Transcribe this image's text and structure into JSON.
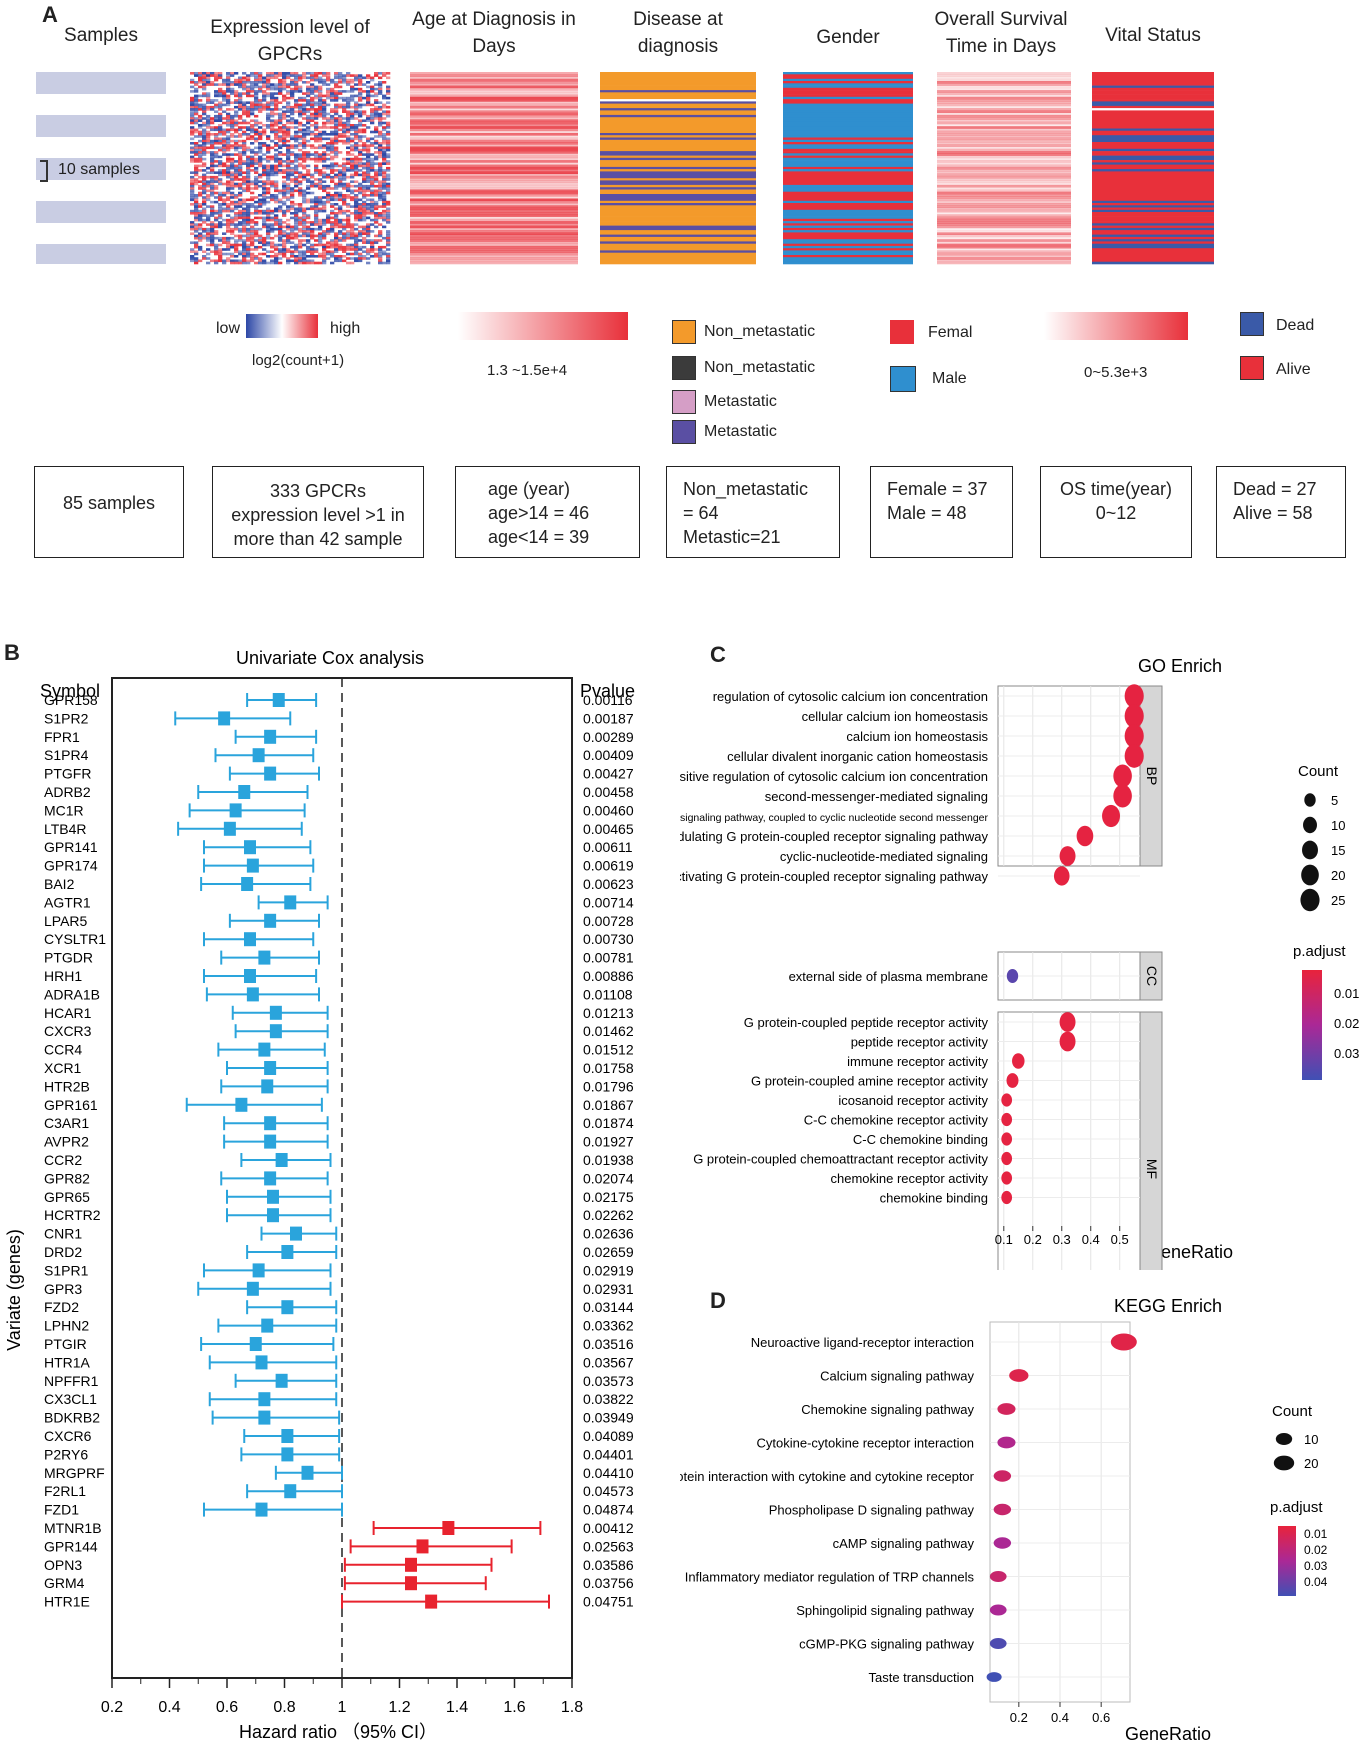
{
  "colors": {
    "blue": "#3a5aa8",
    "red": "#e8303a",
    "orange": "#f39a2b",
    "dark": "#3b3b3b",
    "pink": "#d59ec6",
    "purple": "#5a4fa3",
    "lightgray": "#c9cde3",
    "cyan": "#2aa4dc",
    "fpred": "#e8232e",
    "genderblue": "#2f8fcf"
  },
  "panelA": {
    "label": "A",
    "headers": {
      "samples": "Samples",
      "expr": "Expression level of GPCRs",
      "age": "Age at Diagnosis in Days",
      "disease": "Disease at diagnosis",
      "gender": "Gender",
      "os": "Overall Survival Time in Days",
      "vital": "Vital Status"
    },
    "samples_note": "10 samples",
    "expr_legend": {
      "low": "low",
      "high": "high",
      "scale": "log2(count+1)"
    },
    "age_range": "1.3 ~1.5e+4",
    "disease_legend": [
      "Non_metastatic",
      "Non_metastatic",
      "Metastatic",
      "Metastatic"
    ],
    "gender_legend": [
      "Femal",
      "Male"
    ],
    "os_range": "0~5.3e+3",
    "vital_legend": [
      "Dead",
      "Alive"
    ],
    "boxes": {
      "samples": [
        "85 samples"
      ],
      "expr": [
        "333 GPCRs",
        "expression level >1 in",
        "more than 42 sample"
      ],
      "age": [
        "age (year)",
        "age>14 = 46",
        "age<14 = 39"
      ],
      "disease": [
        "Non_metastatic",
        "= 64",
        "Metastic=21"
      ],
      "gender": [
        "Female = 37",
        "Male = 48"
      ],
      "os": [
        "OS time(year)",
        "0~12"
      ],
      "vital": [
        "Dead = 27",
        "Alive = 58"
      ]
    }
  },
  "panelB": {
    "label": "B",
    "chart_data": {
      "type": "forest",
      "title": "Univariate Cox analysis",
      "symbol_header": "Symbol",
      "pvalue_header": "Pvalue",
      "ylabel": "Variate (genes)",
      "xlabel": "Hazard ratio （95% CI）",
      "xlim": [
        0.2,
        1.8
      ],
      "xticks": [
        0.2,
        0.4,
        0.6,
        0.8,
        1,
        1.2,
        1.4,
        1.6,
        1.8
      ],
      "rows": [
        {
          "gene": "GPR158",
          "hr": 0.78,
          "lo": 0.67,
          "hi": 0.91,
          "p": "0.00116"
        },
        {
          "gene": "S1PR2",
          "hr": 0.59,
          "lo": 0.42,
          "hi": 0.82,
          "p": "0.00187"
        },
        {
          "gene": "FPR1",
          "hr": 0.75,
          "lo": 0.63,
          "hi": 0.91,
          "p": "0.00289"
        },
        {
          "gene": "S1PR4",
          "hr": 0.71,
          "lo": 0.56,
          "hi": 0.9,
          "p": "0.00409"
        },
        {
          "gene": "PTGFR",
          "hr": 0.75,
          "lo": 0.61,
          "hi": 0.92,
          "p": "0.00427"
        },
        {
          "gene": "ADRB2",
          "hr": 0.66,
          "lo": 0.5,
          "hi": 0.88,
          "p": "0.00458"
        },
        {
          "gene": "MC1R",
          "hr": 0.63,
          "lo": 0.47,
          "hi": 0.87,
          "p": "0.00460"
        },
        {
          "gene": "LTB4R",
          "hr": 0.61,
          "lo": 0.43,
          "hi": 0.86,
          "p": "0.00465"
        },
        {
          "gene": "GPR141",
          "hr": 0.68,
          "lo": 0.52,
          "hi": 0.89,
          "p": "0.00611"
        },
        {
          "gene": "GPR174",
          "hr": 0.69,
          "lo": 0.52,
          "hi": 0.9,
          "p": "0.00619"
        },
        {
          "gene": "BAI2",
          "hr": 0.67,
          "lo": 0.51,
          "hi": 0.89,
          "p": "0.00623"
        },
        {
          "gene": "AGTR1",
          "hr": 0.82,
          "lo": 0.71,
          "hi": 0.95,
          "p": "0.00714"
        },
        {
          "gene": "LPAR5",
          "hr": 0.75,
          "lo": 0.61,
          "hi": 0.92,
          "p": "0.00728"
        },
        {
          "gene": "CYSLTR1",
          "hr": 0.68,
          "lo": 0.52,
          "hi": 0.9,
          "p": "0.00730"
        },
        {
          "gene": "PTGDR",
          "hr": 0.73,
          "lo": 0.58,
          "hi": 0.92,
          "p": "0.00781"
        },
        {
          "gene": "HRH1",
          "hr": 0.68,
          "lo": 0.52,
          "hi": 0.91,
          "p": "0.00886"
        },
        {
          "gene": "ADRA1B",
          "hr": 0.69,
          "lo": 0.53,
          "hi": 0.92,
          "p": "0.01108"
        },
        {
          "gene": "HCAR1",
          "hr": 0.77,
          "lo": 0.62,
          "hi": 0.95,
          "p": "0.01213"
        },
        {
          "gene": "CXCR3",
          "hr": 0.77,
          "lo": 0.63,
          "hi": 0.95,
          "p": "0.01462"
        },
        {
          "gene": "CCR4",
          "hr": 0.73,
          "lo": 0.57,
          "hi": 0.94,
          "p": "0.01512"
        },
        {
          "gene": "XCR1",
          "hr": 0.75,
          "lo": 0.6,
          "hi": 0.95,
          "p": "0.01758"
        },
        {
          "gene": "HTR2B",
          "hr": 0.74,
          "lo": 0.58,
          "hi": 0.95,
          "p": "0.01796"
        },
        {
          "gene": "GPR161",
          "hr": 0.65,
          "lo": 0.46,
          "hi": 0.93,
          "p": "0.01867"
        },
        {
          "gene": "C3AR1",
          "hr": 0.75,
          "lo": 0.59,
          "hi": 0.95,
          "p": "0.01874"
        },
        {
          "gene": "AVPR2",
          "hr": 0.75,
          "lo": 0.59,
          "hi": 0.95,
          "p": "0.01927"
        },
        {
          "gene": "CCR2",
          "hr": 0.79,
          "lo": 0.65,
          "hi": 0.96,
          "p": "0.01938"
        },
        {
          "gene": "GPR82",
          "hr": 0.75,
          "lo": 0.58,
          "hi": 0.95,
          "p": "0.02074"
        },
        {
          "gene": "GPR65",
          "hr": 0.76,
          "lo": 0.6,
          "hi": 0.96,
          "p": "0.02175"
        },
        {
          "gene": "HCRTR2",
          "hr": 0.76,
          "lo": 0.6,
          "hi": 0.96,
          "p": "0.02262"
        },
        {
          "gene": "CNR1",
          "hr": 0.84,
          "lo": 0.72,
          "hi": 0.98,
          "p": "0.02636"
        },
        {
          "gene": "DRD2",
          "hr": 0.81,
          "lo": 0.67,
          "hi": 0.98,
          "p": "0.02659"
        },
        {
          "gene": "S1PR1",
          "hr": 0.71,
          "lo": 0.52,
          "hi": 0.96,
          "p": "0.02919"
        },
        {
          "gene": "GPR3",
          "hr": 0.69,
          "lo": 0.5,
          "hi": 0.96,
          "p": "0.02931"
        },
        {
          "gene": "FZD2",
          "hr": 0.81,
          "lo": 0.67,
          "hi": 0.98,
          "p": "0.03144"
        },
        {
          "gene": "LPHN2",
          "hr": 0.74,
          "lo": 0.57,
          "hi": 0.98,
          "p": "0.03362"
        },
        {
          "gene": "PTGIR",
          "hr": 0.7,
          "lo": 0.51,
          "hi": 0.97,
          "p": "0.03516"
        },
        {
          "gene": "HTR1A",
          "hr": 0.72,
          "lo": 0.54,
          "hi": 0.98,
          "p": "0.03567"
        },
        {
          "gene": "NPFFR1",
          "hr": 0.79,
          "lo": 0.63,
          "hi": 0.98,
          "p": "0.03573"
        },
        {
          "gene": "CX3CL1",
          "hr": 0.73,
          "lo": 0.54,
          "hi": 0.98,
          "p": "0.03822"
        },
        {
          "gene": "BDKRB2",
          "hr": 0.73,
          "lo": 0.55,
          "hi": 0.99,
          "p": "0.03949"
        },
        {
          "gene": "CXCR6",
          "hr": 0.81,
          "lo": 0.66,
          "hi": 0.99,
          "p": "0.04089"
        },
        {
          "gene": "P2RY6",
          "hr": 0.81,
          "lo": 0.65,
          "hi": 0.99,
          "p": "0.04401"
        },
        {
          "gene": "MRGPRF",
          "hr": 0.88,
          "lo": 0.77,
          "hi": 1.0,
          "p": "0.04410"
        },
        {
          "gene": "F2RL1",
          "hr": 0.82,
          "lo": 0.67,
          "hi": 1.0,
          "p": "0.04573"
        },
        {
          "gene": "FZD1",
          "hr": 0.72,
          "lo": 0.52,
          "hi": 1.0,
          "p": "0.04874"
        },
        {
          "gene": "MTNR1B",
          "hr": 1.37,
          "lo": 1.11,
          "hi": 1.69,
          "p": "0.00412"
        },
        {
          "gene": "GPR144",
          "hr": 1.28,
          "lo": 1.03,
          "hi": 1.59,
          "p": "0.02563"
        },
        {
          "gene": "OPN3",
          "hr": 1.24,
          "lo": 1.01,
          "hi": 1.52,
          "p": "0.03586"
        },
        {
          "gene": "GRM4",
          "hr": 1.24,
          "lo": 1.01,
          "hi": 1.5,
          "p": "0.03756"
        },
        {
          "gene": "HTR1E",
          "hr": 1.31,
          "lo": 1.0,
          "hi": 1.72,
          "p": "0.04751"
        }
      ]
    }
  },
  "panelC": {
    "label": "C",
    "chart_data": {
      "type": "scatter",
      "title": "GO Enrich",
      "xlabel": "GeneRatio",
      "xticks": [
        0.1,
        0.2,
        0.3,
        0.4,
        0.5
      ],
      "xlim": [
        0.08,
        0.57
      ],
      "facets": [
        {
          "name": "BP",
          "terms": [
            {
              "term": "regulation of cytosolic calcium ion concentration",
              "ratio": 0.55,
              "count": 25,
              "padj": 0.001
            },
            {
              "term": "cellular calcium ion homeostasis",
              "ratio": 0.55,
              "count": 25,
              "padj": 0.001
            },
            {
              "term": "calcium ion homeostasis",
              "ratio": 0.55,
              "count": 25,
              "padj": 0.001
            },
            {
              "term": "cellular divalent inorganic cation homeostasis",
              "ratio": 0.55,
              "count": 25,
              "padj": 0.001
            },
            {
              "term": "positive regulation of cytosolic calcium ion concentration",
              "ratio": 0.51,
              "count": 23,
              "padj": 0.001
            },
            {
              "term": "second-messenger-mediated signaling",
              "ratio": 0.51,
              "count": 23,
              "padj": 0.001
            },
            {
              "term": "G protein-coupled receptor signaling pathway, coupled to cyclic nucleotide second messenger",
              "ratio": 0.47,
              "count": 21,
              "padj": 0.001
            },
            {
              "term": "adenylate cyclase-modulating G protein-coupled receptor signaling pathway",
              "ratio": 0.38,
              "count": 17,
              "padj": 0.001
            },
            {
              "term": "cyclic-nucleotide-mediated signaling",
              "ratio": 0.32,
              "count": 15,
              "padj": 0.001
            },
            {
              "term": "phospholipase C-activating G protein-coupled receptor signaling pathway",
              "ratio": 0.3,
              "count": 14,
              "padj": 0.001
            }
          ]
        },
        {
          "name": "CC",
          "terms": [
            {
              "term": "external side of plasma membrane",
              "ratio": 0.13,
              "count": 5,
              "padj": 0.035
            }
          ]
        },
        {
          "name": "MF",
          "terms": [
            {
              "term": "G protein-coupled peptide receptor activity",
              "ratio": 0.32,
              "count": 15,
              "padj": 0.001
            },
            {
              "term": "peptide receptor activity",
              "ratio": 0.32,
              "count": 15,
              "padj": 0.001
            },
            {
              "term": "immune receptor activity",
              "ratio": 0.15,
              "count": 7,
              "padj": 0.001
            },
            {
              "term": "G protein-coupled amine receptor activity",
              "ratio": 0.13,
              "count": 6,
              "padj": 0.001
            },
            {
              "term": "icosanoid receptor activity",
              "ratio": 0.11,
              "count": 4,
              "padj": 0.001
            },
            {
              "term": "C-C chemokine receptor activity",
              "ratio": 0.11,
              "count": 4,
              "padj": 0.001
            },
            {
              "term": "C-C chemokine binding",
              "ratio": 0.11,
              "count": 4,
              "padj": 0.001
            },
            {
              "term": "G protein-coupled  chemoattractant receptor activity",
              "ratio": 0.11,
              "count": 4,
              "padj": 0.001
            },
            {
              "term": "chemokine receptor activity",
              "ratio": 0.11,
              "count": 4,
              "padj": 0.001
            },
            {
              "term": "chemokine binding",
              "ratio": 0.11,
              "count": 4,
              "padj": 0.001
            }
          ]
        }
      ],
      "size_legend": {
        "title": "Count",
        "values": [
          5,
          10,
          15,
          20,
          25
        ]
      },
      "color_legend": {
        "title": "p.adjust",
        "ticks": [
          "0.01",
          "0.02",
          "0.03"
        ]
      }
    }
  },
  "panelD": {
    "label": "D",
    "chart_data": {
      "type": "scatter",
      "title": "KEGG Enrich",
      "xlabel": "GeneRatio",
      "xticks": [
        0.2,
        0.4,
        0.6
      ],
      "xlim": [
        0.06,
        0.74
      ],
      "terms": [
        {
          "term": "Neuroactive ligand-receptor interaction",
          "ratio": 0.71,
          "count": 25,
          "padj": 0.003
        },
        {
          "term": "Calcium signaling pathway",
          "ratio": 0.2,
          "count": 10,
          "padj": 0.004
        },
        {
          "term": "Chemokine signaling pathway",
          "ratio": 0.14,
          "count": 8,
          "padj": 0.008
        },
        {
          "term": "Cytokine-cytokine receptor interaction",
          "ratio": 0.14,
          "count": 8,
          "padj": 0.02
        },
        {
          "term": "Viral protein interaction with cytokine and cytokine receptor",
          "ratio": 0.12,
          "count": 7,
          "padj": 0.01
        },
        {
          "term": "Phospholipase D signaling pathway",
          "ratio": 0.12,
          "count": 7,
          "padj": 0.012
        },
        {
          "term": "cAMP signaling pathway",
          "ratio": 0.12,
          "count": 7,
          "padj": 0.022
        },
        {
          "term": "Inflammatory mediator regulation of TRP channels",
          "ratio": 0.1,
          "count": 6,
          "padj": 0.012
        },
        {
          "term": "Sphingolipid signaling pathway",
          "ratio": 0.1,
          "count": 6,
          "padj": 0.022
        },
        {
          "term": "cGMP-PKG signaling pathway",
          "ratio": 0.1,
          "count": 6,
          "padj": 0.042
        },
        {
          "term": "Taste transduction",
          "ratio": 0.08,
          "count": 4,
          "padj": 0.045
        }
      ],
      "size_legend": {
        "title": "Count",
        "values": [
          10,
          20
        ]
      },
      "color_legend": {
        "title": "p.adjust",
        "ticks": [
          "0.01",
          "0.02",
          "0.03",
          "0.04"
        ]
      }
    }
  }
}
